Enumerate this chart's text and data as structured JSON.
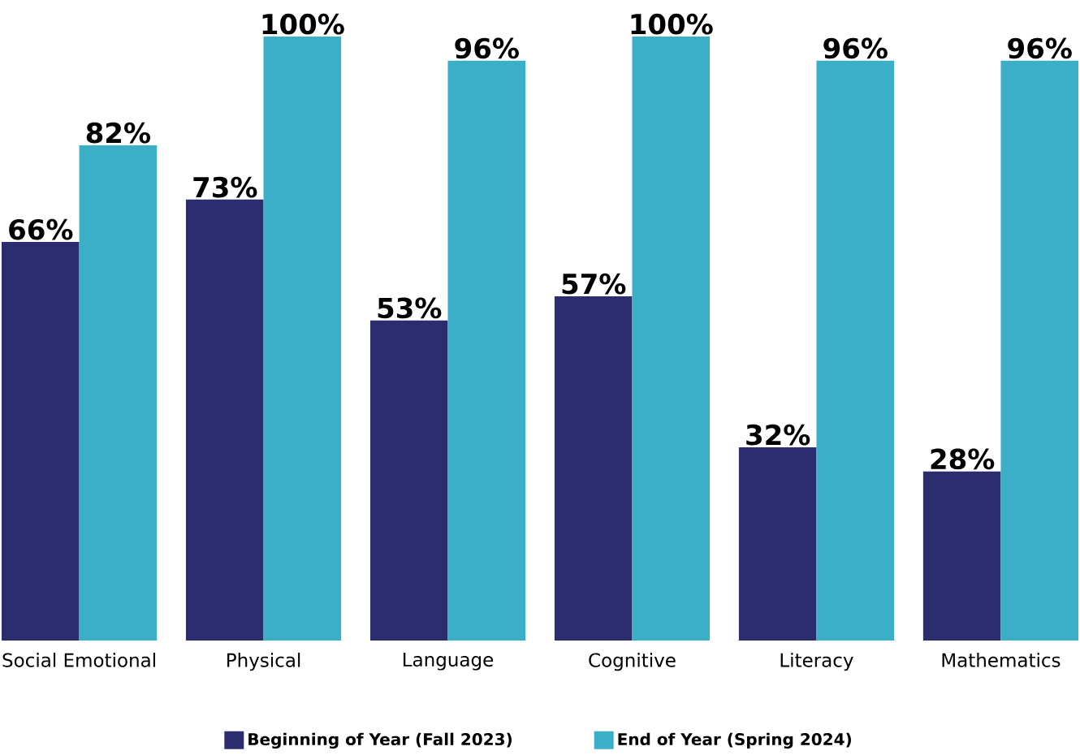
{
  "chart_data": {
    "type": "bar",
    "categories": [
      "Social Emotional",
      "Physical",
      "Language",
      "Cognitive",
      "Literacy",
      "Mathematics"
    ],
    "series": [
      {
        "name": "Beginning of Year (Fall 2023)",
        "color": "#2b2d6e",
        "values": [
          66,
          73,
          53,
          57,
          32,
          28
        ],
        "value_labels": [
          "66%",
          "73%",
          "53%",
          "57%",
          "32%",
          "28%"
        ]
      },
      {
        "name": "End of Year (Spring 2024)",
        "color": "#3bafc7",
        "values": [
          82,
          100,
          96,
          100,
          96,
          96
        ],
        "value_labels": [
          "82%",
          "100%",
          "96%",
          "100%",
          "96%",
          "96%"
        ]
      }
    ],
    "ylim": [
      0,
      100
    ],
    "tick_labels": "x",
    "legend": "bottom"
  }
}
